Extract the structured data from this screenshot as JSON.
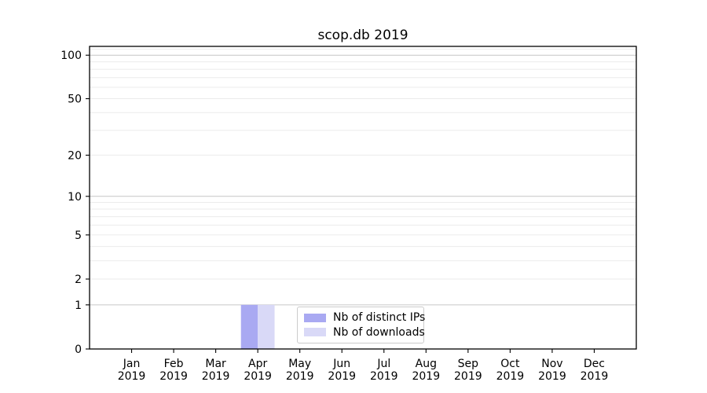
{
  "chart_data": {
    "type": "bar",
    "title": "scop.db 2019",
    "categories": [
      "Jan",
      "Feb",
      "Mar",
      "Apr",
      "May",
      "Jun",
      "Jul",
      "Aug",
      "Sep",
      "Oct",
      "Nov",
      "Dec"
    ],
    "x_year": "2019",
    "series": [
      {
        "name": "Nb of distinct IPs",
        "color": "#a9a9f2",
        "values": [
          0,
          0,
          0,
          1,
          0,
          0,
          0,
          0,
          0,
          0,
          0,
          0
        ]
      },
      {
        "name": "Nb of downloads",
        "color": "#d9d9f7",
        "values": [
          0,
          0,
          0,
          1,
          0,
          0,
          0,
          0,
          0,
          0,
          0,
          0
        ]
      }
    ],
    "y_scale": "log10(1+v)",
    "ylim": [
      0,
      115
    ],
    "y_ticks": [
      0,
      1,
      2,
      5,
      10,
      20,
      50,
      100
    ],
    "y_major_gridlines": [
      1,
      10,
      100
    ],
    "y_minor_gridlines": [
      2,
      3,
      4,
      5,
      6,
      7,
      8,
      9,
      20,
      30,
      40,
      50,
      60,
      70,
      80,
      90,
      110
    ],
    "grid": true,
    "legend_position": "inside plot, lower center",
    "colors": {
      "grid_major": "#c6c6c6",
      "grid_minor": "#ebebeb",
      "axis": "#000000",
      "background": "#ffffff"
    }
  }
}
